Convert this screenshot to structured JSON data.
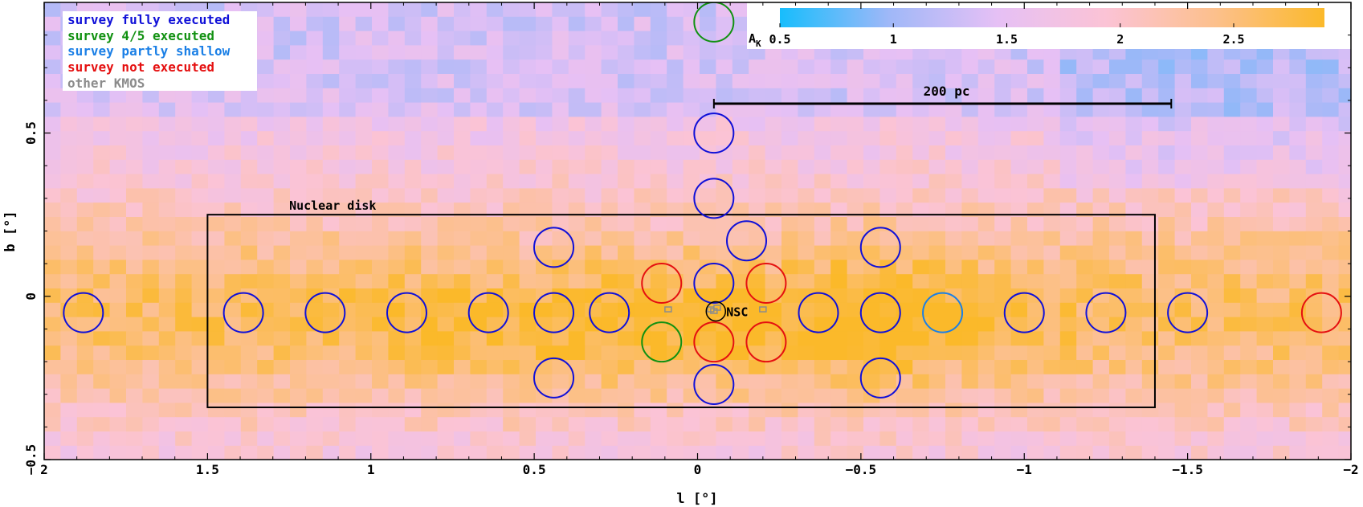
{
  "chart_data": {
    "type": "heatmap",
    "xlabel": "l [°]",
    "ylabel": "b [°]",
    "xlim": [
      2,
      -2
    ],
    "ylim": [
      -0.5,
      0.9
    ],
    "x_ticks": [
      2,
      1.5,
      1,
      0.5,
      0,
      -0.5,
      -1,
      -1.5,
      -2
    ],
    "x_tick_labels": [
      "2",
      "1.5",
      "1",
      "0.5",
      "0",
      "−0.5",
      "−1",
      "−1.5",
      "−2"
    ],
    "y_ticks": [
      0.5,
      0,
      -0.5
    ],
    "y_tick_labels": [
      "0.5",
      "0",
      "−0.5"
    ],
    "colorbar": {
      "label": "A",
      "label_sub": "K",
      "range": [
        0.5,
        2.9
      ],
      "ticks": [
        0.5,
        1,
        1.5,
        2,
        2.5
      ],
      "tick_labels": [
        "0.5",
        "1",
        "1.5",
        "2",
        "2.5"
      ],
      "colors": [
        "#17bdfc",
        "#9fb8f8",
        "#e6c0f5",
        "#fbc3d5",
        "#fcc08c",
        "#fbb92a"
      ]
    },
    "legend": {
      "placement": "top-left",
      "entries": [
        {
          "label": "survey fully executed",
          "color": "#1010d8"
        },
        {
          "label": "survey 4/5 executed",
          "color": "#119111"
        },
        {
          "label": "survey partly shallow",
          "color": "#1a7fe6"
        },
        {
          "label": "survey not executed",
          "color": "#e51010"
        },
        {
          "label": "other KMOS",
          "color": "#8c8c8c"
        }
      ]
    },
    "scale_bar": {
      "label": "200 pc",
      "l_start": -0.05,
      "l_end": -1.45,
      "b": 0.59
    },
    "nuclear_disk": {
      "label": "Nuclear disk",
      "l_min": -1.4,
      "l_max": 1.5,
      "b_min": -0.34,
      "b_max": 0.25
    },
    "nsc_label": "NSC",
    "fields": [
      {
        "l": 1.88,
        "b": -0.05,
        "status": "fully"
      },
      {
        "l": 1.39,
        "b": -0.05,
        "status": "fully"
      },
      {
        "l": 1.14,
        "b": -0.05,
        "status": "fully"
      },
      {
        "l": 0.89,
        "b": -0.05,
        "status": "fully"
      },
      {
        "l": 0.64,
        "b": -0.05,
        "status": "fully"
      },
      {
        "l": 0.44,
        "b": -0.05,
        "status": "fully"
      },
      {
        "l": 0.27,
        "b": -0.05,
        "status": "fully"
      },
      {
        "l": 0.44,
        "b": 0.15,
        "status": "fully"
      },
      {
        "l": 0.44,
        "b": -0.25,
        "status": "fully"
      },
      {
        "l": -0.05,
        "b": 0.5,
        "status": "fully"
      },
      {
        "l": -0.05,
        "b": 0.3,
        "status": "fully"
      },
      {
        "l": -0.15,
        "b": 0.17,
        "status": "fully"
      },
      {
        "l": -0.05,
        "b": 0.04,
        "status": "fully"
      },
      {
        "l": -0.05,
        "b": -0.27,
        "status": "fully"
      },
      {
        "l": -0.37,
        "b": -0.05,
        "status": "fully"
      },
      {
        "l": -0.56,
        "b": -0.05,
        "status": "fully"
      },
      {
        "l": -0.56,
        "b": 0.15,
        "status": "fully"
      },
      {
        "l": -0.56,
        "b": -0.25,
        "status": "fully"
      },
      {
        "l": -1.0,
        "b": -0.05,
        "status": "fully"
      },
      {
        "l": -1.25,
        "b": -0.05,
        "status": "fully"
      },
      {
        "l": -1.5,
        "b": -0.05,
        "status": "fully"
      },
      {
        "l": -0.05,
        "b": 0.84,
        "status": "four_fifths"
      },
      {
        "l": 0.11,
        "b": -0.14,
        "status": "four_fifths"
      },
      {
        "l": -0.75,
        "b": -0.05,
        "status": "partly_shallow"
      },
      {
        "l": 0.11,
        "b": 0.04,
        "status": "not_executed"
      },
      {
        "l": -0.21,
        "b": 0.04,
        "status": "not_executed"
      },
      {
        "l": -0.05,
        "b": -0.14,
        "status": "not_executed"
      },
      {
        "l": -0.21,
        "b": -0.14,
        "status": "not_executed"
      },
      {
        "l": -1.91,
        "b": -0.05,
        "status": "not_executed"
      }
    ],
    "other_kmos": [
      {
        "l": 0.09,
        "b": -0.04
      },
      {
        "l": -0.2,
        "b": -0.04
      },
      {
        "l": -0.04,
        "b": -0.04
      },
      {
        "l": -0.06,
        "b": -0.035
      },
      {
        "l": -0.05,
        "b": -0.045
      }
    ],
    "nsc": {
      "l": -0.056,
      "b": -0.046
    }
  }
}
